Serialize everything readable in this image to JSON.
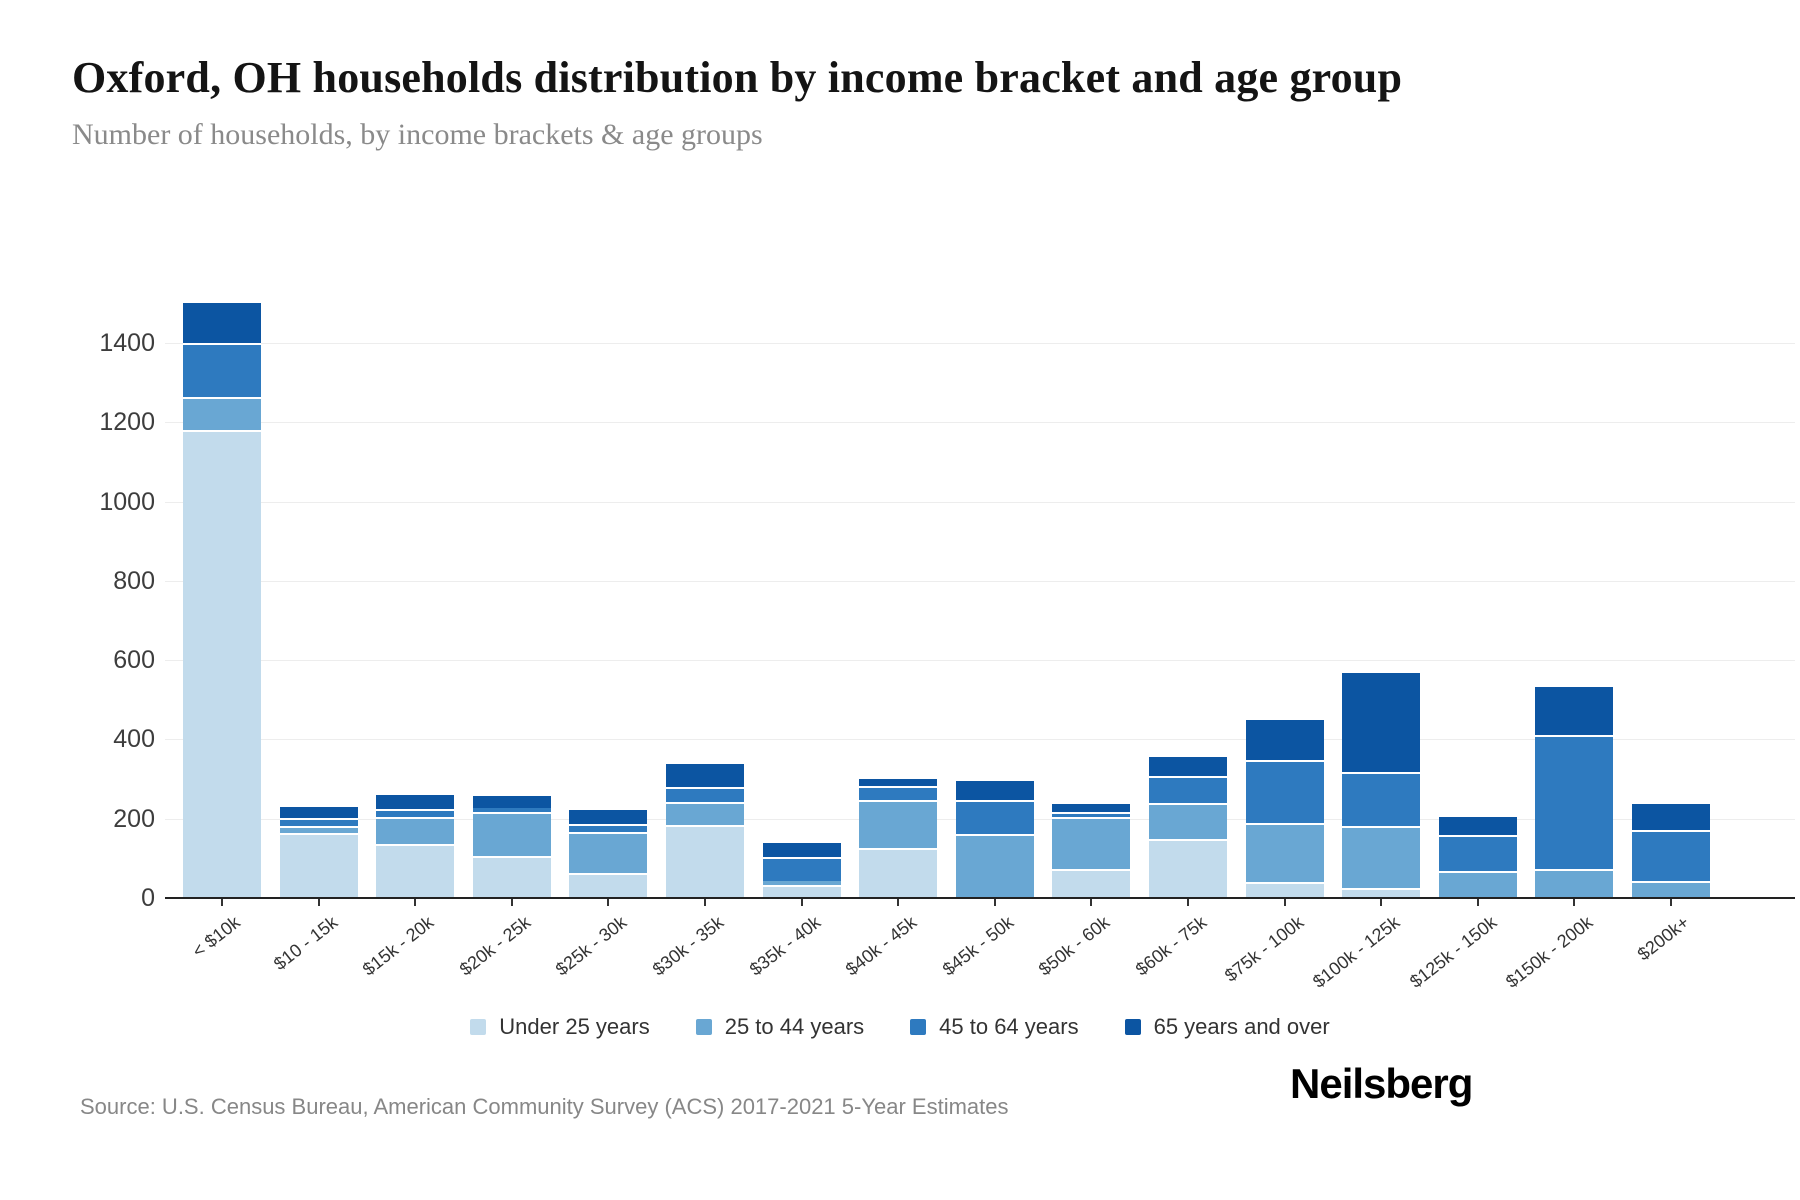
{
  "header": {
    "title": "Oxford, OH households distribution by income bracket and age group",
    "subtitle": "Number of households, by income brackets & age groups"
  },
  "footer": {
    "source": "Source: U.S. Census Bureau, American Community Survey (ACS) 2017-2021 5-Year Estimates",
    "brand": "Neilsberg"
  },
  "chart_data": {
    "type": "bar",
    "stacked": true,
    "title": "Oxford, OH households distribution by income bracket and age group",
    "xlabel": "",
    "ylabel": "Number of households",
    "grid": true,
    "legend_position": "bottom",
    "ylim": [
      0,
      1520
    ],
    "yticks": [
      0,
      200,
      400,
      600,
      800,
      1000,
      1200,
      1400
    ],
    "categories": [
      "< $10k",
      "$10 - 15k",
      "$15k - 20k",
      "$20k - 25k",
      "$25k - 30k",
      "$30k - 35k",
      "$35k - 40k",
      "$40k - 45k",
      "$45k - 50k",
      "$50k - 60k",
      "$60k - 75k",
      "$75k - 100k",
      "$100k - 125k",
      "$125k - 150k",
      "$150k - 200k",
      "$200k+"
    ],
    "series": [
      {
        "name": "Under 25 years",
        "color": "#c2dbec",
        "values": [
          1180,
          165,
          136,
          106,
          62,
          184,
          33,
          126,
          0,
          73,
          149,
          40,
          25,
          0,
          0,
          0
        ]
      },
      {
        "name": "25 to 44 years",
        "color": "#69a7d3",
        "values": [
          85,
          16,
          68,
          110,
          104,
          58,
          10,
          121,
          161,
          132,
          91,
          149,
          157,
          68,
          73,
          43
        ]
      },
      {
        "name": "45 to 64 years",
        "color": "#2e7abf",
        "values": [
          135,
          22,
          20,
          10,
          20,
          38,
          60,
          35,
          86,
          13,
          68,
          159,
          136,
          91,
          338,
          128
        ]
      },
      {
        "name": "65 years and over",
        "color": "#0c55a2",
        "values": [
          100,
          27,
          37,
          32,
          36,
          58,
          36,
          18,
          48,
          19,
          48,
          102,
          250,
          45,
          121,
          66
        ]
      }
    ],
    "totals": [
      1500,
      230,
      261,
      258,
      222,
      338,
      139,
      300,
      295,
      237,
      356,
      450,
      568,
      204,
      532,
      237
    ]
  }
}
